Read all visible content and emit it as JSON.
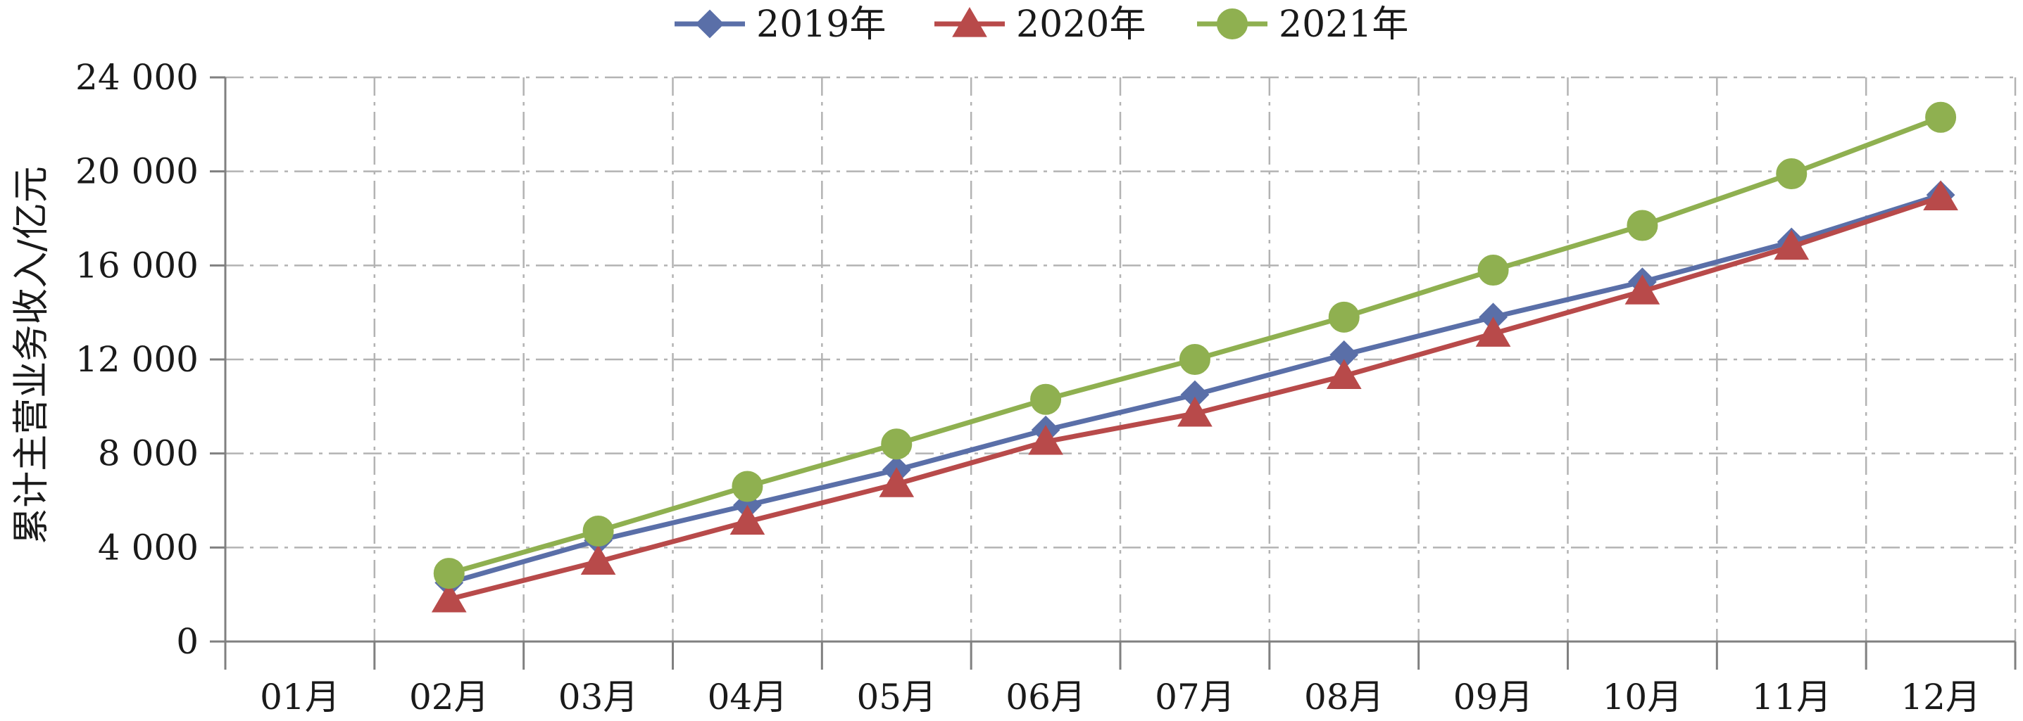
{
  "chart_data": {
    "type": "line",
    "title": "",
    "xlabel": "",
    "ylabel": "累计主营业务收入/亿元",
    "categories": [
      "01月",
      "02月",
      "03月",
      "04月",
      "05月",
      "06月",
      "07月",
      "08月",
      "09月",
      "10月",
      "11月",
      "12月"
    ],
    "ylim": [
      0,
      24000
    ],
    "yticks": [
      0,
      4000,
      8000,
      12000,
      16000,
      20000,
      24000
    ],
    "ytick_labels": [
      "0",
      "4 000",
      "8 000",
      "12 000",
      "16 000",
      "20 000",
      "24 000"
    ],
    "grid": true,
    "legend_position": "top",
    "series": [
      {
        "name": "2019年",
        "marker": "diamond",
        "color": "#5a6fa8",
        "values": [
          null,
          2500,
          4300,
          5800,
          7300,
          9000,
          10500,
          12200,
          13800,
          15300,
          17000,
          19000
        ]
      },
      {
        "name": "2020年",
        "marker": "triangle",
        "color": "#b84a4a",
        "values": [
          null,
          1800,
          3400,
          5100,
          6700,
          8500,
          9700,
          11300,
          13100,
          14900,
          16800,
          18900
        ]
      },
      {
        "name": "2021年",
        "marker": "circle",
        "color": "#8fb050",
        "values": [
          null,
          2900,
          4700,
          6600,
          8400,
          10300,
          12000,
          13800,
          15800,
          17700,
          19900,
          22300
        ]
      }
    ]
  }
}
